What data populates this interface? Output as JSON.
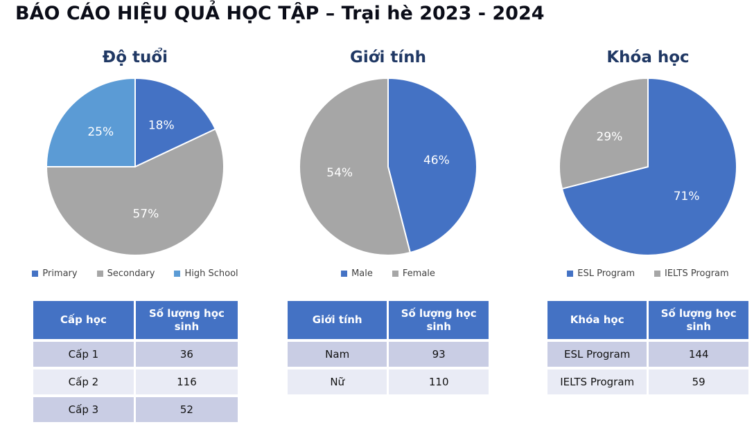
{
  "report_title": "BÁO CÁO HIỆU QUẢ HỌC TẬP – Trại hè 2023 - 2024",
  "colors": {
    "accent_blue": "#4472C4",
    "accent_gray": "#A6A6A6",
    "accent_light_blue": "#5B9BD5",
    "table_header_bg": "#4472C4",
    "row_band_dark": "#C9CDE4",
    "row_band_light": "#E9EBF5",
    "chart_title_color": "#203864",
    "legend_text_color": "#404040"
  },
  "chart_data": [
    {
      "type": "pie",
      "title": "Độ tuổi",
      "labels": [
        "Primary",
        "Secondary",
        "High School"
      ],
      "values": [
        18,
        57,
        25
      ],
      "data_labels": [
        "18%",
        "57%",
        "25%"
      ],
      "colors": [
        "#4472C4",
        "#A6A6A6",
        "#5B9BD5"
      ],
      "legend_position": "bottom",
      "start_angle_deg": 0,
      "direction": "clockwise"
    },
    {
      "type": "pie",
      "title": "Giới tính",
      "labels": [
        "Male",
        "Female"
      ],
      "values": [
        46,
        54
      ],
      "data_labels": [
        "46%",
        "54%"
      ],
      "colors": [
        "#4472C4",
        "#A6A6A6"
      ],
      "legend_position": "bottom",
      "start_angle_deg": 0,
      "direction": "clockwise"
    },
    {
      "type": "pie",
      "title": "Khóa học",
      "labels": [
        "ESL Program",
        "IELTS Program"
      ],
      "values": [
        71,
        29
      ],
      "data_labels": [
        "71%",
        "29%"
      ],
      "colors": [
        "#4472C4",
        "#A6A6A6"
      ],
      "legend_position": "bottom",
      "start_angle_deg": 0,
      "direction": "clockwise"
    }
  ],
  "tables": [
    {
      "headers": [
        "Cấp học",
        "Số lượng học sinh"
      ],
      "rows": [
        [
          "Cấp 1",
          "36"
        ],
        [
          "Cấp 2",
          "116"
        ],
        [
          "Cấp 3",
          "52"
        ]
      ]
    },
    {
      "headers": [
        "Giới tính",
        "Số lượng học sinh"
      ],
      "rows": [
        [
          "Nam",
          "93"
        ],
        [
          "Nữ",
          "110"
        ]
      ]
    },
    {
      "headers": [
        "Khóa học",
        "Số lượng học sinh"
      ],
      "rows": [
        [
          "ESL Program",
          "144"
        ],
        [
          "IELTS Program",
          "59"
        ]
      ]
    }
  ]
}
